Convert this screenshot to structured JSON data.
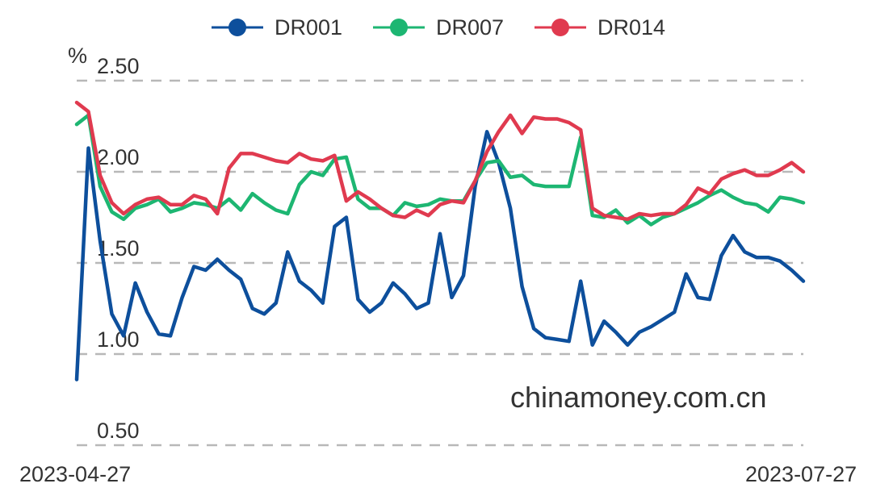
{
  "chart_data": {
    "type": "line",
    "title": "",
    "xlabel": "",
    "ylabel": "%",
    "ylim": [
      0.5,
      2.5
    ],
    "yticks": [
      "0.50",
      "1.00",
      "1.50",
      "2.00",
      "2.50"
    ],
    "grid": true,
    "legend_placement": "top",
    "x_start_label": "2023-04-27",
    "x_end_label": "2023-07-27",
    "watermark": "chinamoney.com.cn",
    "series": [
      {
        "name": "DR001",
        "color": "#0d4f9c",
        "values": [
          0.86,
          2.13,
          1.62,
          1.22,
          1.1,
          1.39,
          1.23,
          1.11,
          1.1,
          1.31,
          1.48,
          1.46,
          1.52,
          1.46,
          1.41,
          1.25,
          1.22,
          1.28,
          1.56,
          1.4,
          1.35,
          1.28,
          1.7,
          1.75,
          1.3,
          1.23,
          1.28,
          1.39,
          1.33,
          1.25,
          1.28,
          1.66,
          1.31,
          1.43,
          1.92,
          2.22,
          2.05,
          1.8,
          1.37,
          1.14,
          1.09,
          1.08,
          1.07,
          1.4,
          1.05,
          1.18,
          1.12,
          1.05,
          1.12,
          1.15,
          1.19,
          1.23,
          1.44,
          1.31,
          1.3,
          1.54,
          1.65,
          1.56,
          1.53,
          1.53,
          1.51,
          1.46,
          1.4
        ]
      },
      {
        "name": "DR007",
        "color": "#1db672",
        "values": [
          2.26,
          2.31,
          1.92,
          1.78,
          1.74,
          1.8,
          1.82,
          1.85,
          1.78,
          1.8,
          1.83,
          1.82,
          1.8,
          1.85,
          1.79,
          1.88,
          1.83,
          1.79,
          1.77,
          1.93,
          2.0,
          1.98,
          2.07,
          2.08,
          1.85,
          1.8,
          1.8,
          1.76,
          1.83,
          1.81,
          1.82,
          1.85,
          1.84,
          1.84,
          1.95,
          2.05,
          2.06,
          1.97,
          1.98,
          1.93,
          1.92,
          1.92,
          1.92,
          2.19,
          1.76,
          1.75,
          1.79,
          1.72,
          1.76,
          1.71,
          1.75,
          1.77,
          1.8,
          1.83,
          1.87,
          1.9,
          1.86,
          1.83,
          1.82,
          1.78,
          1.86,
          1.85,
          1.83
        ]
      },
      {
        "name": "DR014",
        "color": "#e03a4f",
        "values": [
          2.38,
          2.33,
          1.98,
          1.83,
          1.77,
          1.82,
          1.85,
          1.86,
          1.82,
          1.82,
          1.87,
          1.85,
          1.77,
          2.02,
          2.1,
          2.1,
          2.08,
          2.06,
          2.05,
          2.1,
          2.07,
          2.06,
          2.09,
          1.84,
          1.89,
          1.85,
          1.8,
          1.76,
          1.75,
          1.79,
          1.76,
          1.82,
          1.84,
          1.83,
          1.95,
          2.11,
          2.22,
          2.31,
          2.21,
          2.3,
          2.29,
          2.29,
          2.27,
          2.23,
          1.8,
          1.76,
          1.75,
          1.74,
          1.77,
          1.76,
          1.77,
          1.77,
          1.82,
          1.91,
          1.88,
          1.96,
          1.99,
          2.01,
          1.98,
          1.98,
          2.01,
          2.05,
          2.0
        ]
      }
    ]
  }
}
